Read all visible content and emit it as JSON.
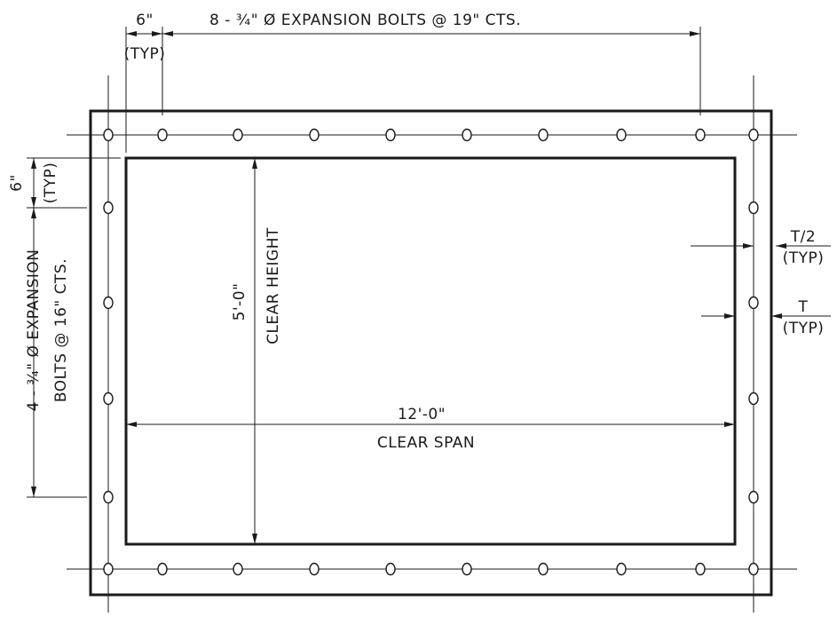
{
  "top_dimension": {
    "edge_spacing": "6\"",
    "edge_spacing_note": "(TYP)",
    "bolts_note": "8 - ¾\" Ø EXPANSION BOLTS @ 19\" CTS."
  },
  "left_dimension": {
    "edge_spacing": "6\"",
    "edge_spacing_note": "(TYP)",
    "bolts_note_line1": "4 - ¾\" Ø EXPANSION",
    "bolts_note_line2": "BOLTS @ 16\" CTS."
  },
  "right_dimension": {
    "half_thickness": "T/2",
    "half_thickness_note": "(TYP)",
    "thickness": "T",
    "thickness_note": "(TYP)"
  },
  "opening": {
    "height_value": "5'-0\"",
    "height_label": "CLEAR HEIGHT",
    "span_value": "12'-0\"",
    "span_label": "CLEAR SPAN"
  }
}
